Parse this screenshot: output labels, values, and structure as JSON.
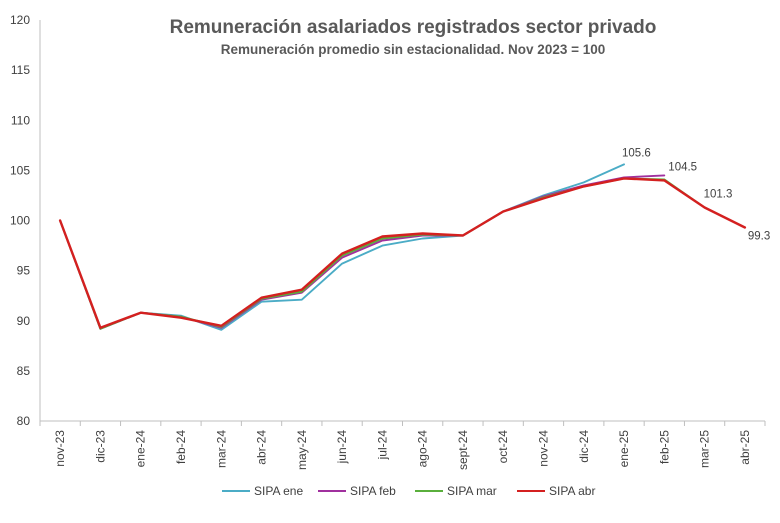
{
  "chart_data": {
    "type": "line",
    "title": "Remuneración asalariados registrados sector privado",
    "subtitle": "Remuneración promedio sin estacionalidad. Nov 2023 = 100",
    "xlabel": "",
    "ylabel": "",
    "ylim": [
      80,
      120
    ],
    "yticks": [
      "80",
      "85",
      "90",
      "95",
      "100",
      "105",
      "110",
      "115",
      "120"
    ],
    "grid": false,
    "legend_position": "bottom",
    "categories": [
      "nov-23",
      "dic-23",
      "ene-24",
      "feb-24",
      "mar-24",
      "abr-24",
      "may-24",
      "jun-24",
      "jul-24",
      "ago-24",
      "sept-24",
      "oct-24",
      "nov-24",
      "dic-24",
      "ene-25",
      "feb-25",
      "mar-25",
      "abr-25"
    ],
    "series": [
      {
        "name": "SIPA ene",
        "color": "#4BACC6",
        "values": [
          100.0,
          89.2,
          90.8,
          90.5,
          89.1,
          91.9,
          92.1,
          95.7,
          97.5,
          98.2,
          98.5,
          100.9,
          102.5,
          103.8,
          105.6,
          null,
          null,
          null
        ]
      },
      {
        "name": "SIPA feb",
        "color": "#A0309E",
        "values": [
          100.0,
          89.2,
          90.8,
          90.4,
          89.3,
          92.1,
          92.8,
          96.3,
          98.0,
          98.5,
          98.5,
          100.9,
          102.4,
          103.5,
          104.3,
          104.5,
          null,
          null
        ]
      },
      {
        "name": "SIPA mar",
        "color": "#5AAF3C",
        "values": [
          100.0,
          89.2,
          90.8,
          90.4,
          89.4,
          92.2,
          92.9,
          96.5,
          98.2,
          98.6,
          98.5,
          100.9,
          102.3,
          103.4,
          104.2,
          104.1,
          101.3,
          null
        ]
      },
      {
        "name": "SIPA abr",
        "color": "#D42020",
        "values": [
          100.0,
          89.3,
          90.8,
          90.3,
          89.5,
          92.3,
          93.1,
          96.7,
          98.4,
          98.7,
          98.5,
          100.9,
          102.2,
          103.4,
          104.2,
          104.0,
          101.3,
          99.3
        ]
      }
    ],
    "data_labels": [
      {
        "category": "ene-25",
        "value": 105.6,
        "text": "105.6",
        "color": "#404040"
      },
      {
        "category": "feb-25",
        "value": 104.5,
        "text": "104.5",
        "color": "#404040"
      },
      {
        "category": "mar-25",
        "value": 101.3,
        "text": "101.3",
        "color": "#404040"
      },
      {
        "category": "abr-25",
        "value": 99.3,
        "text": "99.3",
        "color": "#404040"
      }
    ]
  }
}
